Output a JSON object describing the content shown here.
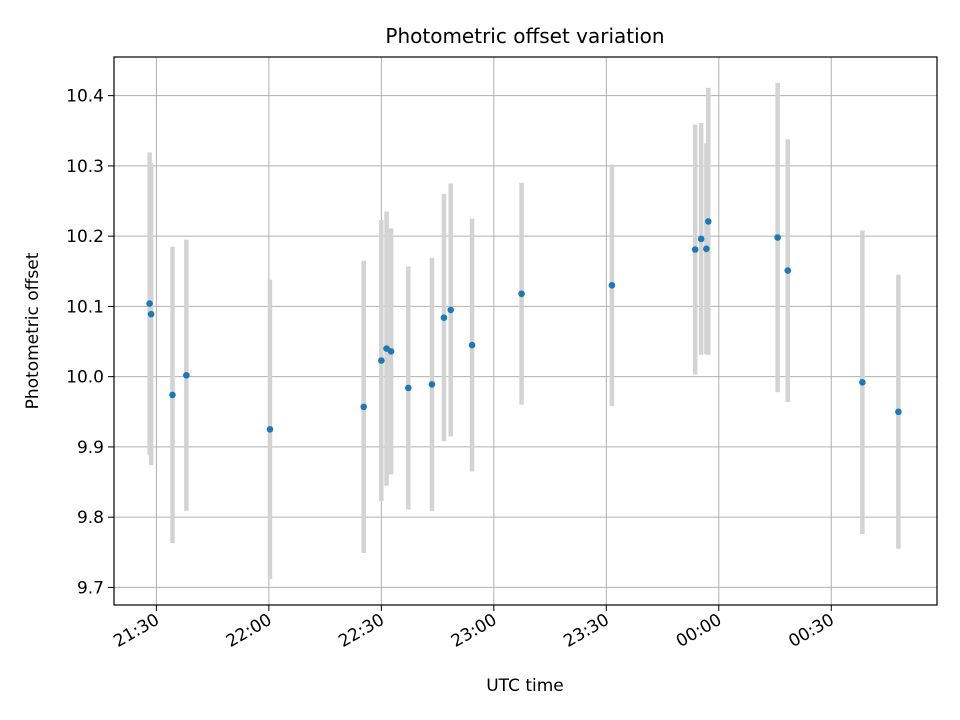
{
  "chart_data": {
    "type": "scatter",
    "title": "Photometric offset variation",
    "xlabel": "UTC time",
    "ylabel": "Photometric offset",
    "x_tick_labels": [
      "21:30",
      "22:00",
      "22:30",
      "23:00",
      "23:30",
      "00:00",
      "00:30"
    ],
    "y_tick_labels": [
      "9.7",
      "9.8",
      "9.9",
      "10.0",
      "10.1",
      "10.2",
      "10.3",
      "10.4"
    ],
    "y_ticks": [
      9.7,
      9.8,
      9.9,
      10.0,
      10.1,
      10.2,
      10.3,
      10.4
    ],
    "ylim": [
      9.675,
      10.455
    ],
    "x_ticks_minutes_after_2130": [
      0,
      30,
      60,
      90,
      120,
      150,
      180
    ],
    "xlim_minutes_after_2130": [
      -11.3,
      208.2
    ],
    "grid": true,
    "colors": {
      "point": "#1f77b4",
      "errorbar": "#d3d3d3"
    },
    "points": [
      {
        "x": -1.8,
        "y": 10.104,
        "yerr": 0.215
      },
      {
        "x": -1.4,
        "y": 10.089,
        "yerr": 0.215
      },
      {
        "x": 4.3,
        "y": 9.974,
        "yerr": 0.211
      },
      {
        "x": 8.0,
        "y": 10.002,
        "yerr": 0.193
      },
      {
        "x": 30.3,
        "y": 9.925,
        "yerr": 0.213
      },
      {
        "x": 55.3,
        "y": 9.957,
        "yerr": 0.208
      },
      {
        "x": 60.0,
        "y": 10.023,
        "yerr": 0.2
      },
      {
        "x": 61.4,
        "y": 10.04,
        "yerr": 0.195
      },
      {
        "x": 62.6,
        "y": 10.036,
        "yerr": 0.175
      },
      {
        "x": 67.2,
        "y": 9.984,
        "yerr": 0.173
      },
      {
        "x": 73.5,
        "y": 9.989,
        "yerr": 0.18
      },
      {
        "x": 76.7,
        "y": 10.084,
        "yerr": 0.176
      },
      {
        "x": 78.5,
        "y": 10.095,
        "yerr": 0.18
      },
      {
        "x": 84.2,
        "y": 10.045,
        "yerr": 0.18
      },
      {
        "x": 97.4,
        "y": 10.118,
        "yerr": 0.158
      },
      {
        "x": 121.5,
        "y": 10.13,
        "yerr": 0.172
      },
      {
        "x": 143.7,
        "y": 10.181,
        "yerr": 0.178
      },
      {
        "x": 145.3,
        "y": 10.196,
        "yerr": 0.165
      },
      {
        "x": 146.7,
        "y": 10.182,
        "yerr": 0.15
      },
      {
        "x": 147.2,
        "y": 10.221,
        "yerr": 0.19
      },
      {
        "x": 165.7,
        "y": 10.198,
        "yerr": 0.22
      },
      {
        "x": 168.4,
        "y": 10.151,
        "yerr": 0.187
      },
      {
        "x": 188.3,
        "y": 9.992,
        "yerr": 0.216
      },
      {
        "x": 197.9,
        "y": 9.95,
        "yerr": 0.195
      }
    ]
  }
}
